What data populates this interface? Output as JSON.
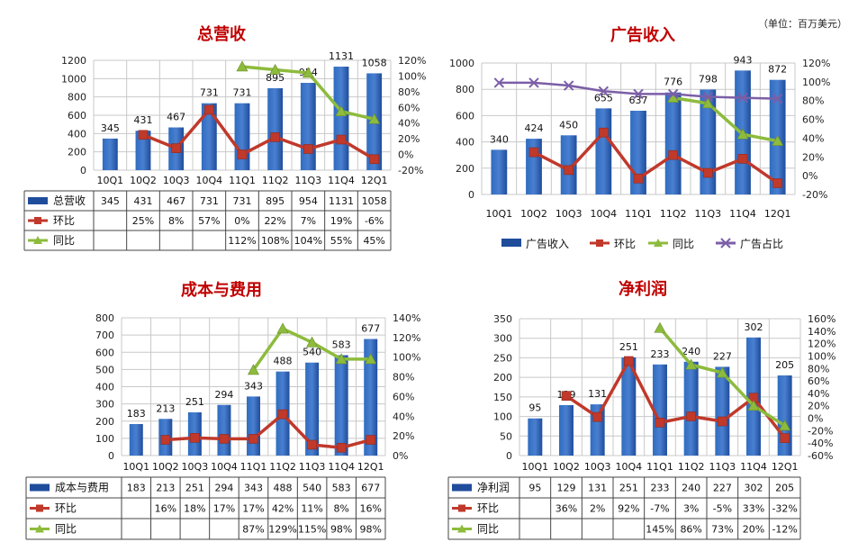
{
  "unit_label": "（单位：百万美元）",
  "colors": {
    "bar_top": "#4a7fd0",
    "bar_mid": "#1f4d9c",
    "bar_bottom": "#2f6cc0",
    "qoq": "#c0392b",
    "yoy": "#8dbb3c",
    "share": "#7b5ea7",
    "title": "#c00000",
    "grid": "#c8c8c8"
  },
  "chart_data": [
    {
      "type": "bar+line",
      "title": "总营收",
      "categories": [
        "10Q1",
        "10Q2",
        "10Q3",
        "10Q4",
        "11Q1",
        "11Q2",
        "11Q3",
        "11Q4",
        "12Q1"
      ],
      "bar_series": {
        "name": "总营收",
        "values": [
          345,
          431,
          467,
          731,
          731,
          895,
          954,
          1131,
          1058
        ]
      },
      "line_series": [
        {
          "name": "环比",
          "values": [
            null,
            25,
            8,
            57,
            0,
            22,
            7,
            19,
            -6
          ],
          "marker": "square",
          "color": "#c0392b"
        },
        {
          "name": "同比",
          "values": [
            null,
            null,
            null,
            null,
            112,
            108,
            104,
            55,
            45
          ],
          "marker": "triangle",
          "color": "#8dbb3c"
        }
      ],
      "y_left": {
        "min": 0,
        "max": 1200,
        "step": 200
      },
      "y_right": {
        "min": -20,
        "max": 120,
        "step": 20
      },
      "table_rows": [
        {
          "label": "总营收",
          "cells": [
            "345",
            "431",
            "467",
            "731",
            "731",
            "895",
            "954",
            "1131",
            "1058"
          ]
        },
        {
          "label": "环比",
          "cells": [
            "",
            "25%",
            "8%",
            "57%",
            "0%",
            "22%",
            "7%",
            "19%",
            "-6%"
          ]
        },
        {
          "label": "同比",
          "cells": [
            "",
            "",
            "",
            "",
            "112%",
            "108%",
            "104%",
            "55%",
            "45%"
          ]
        }
      ]
    },
    {
      "type": "bar+line",
      "title": "广告收入",
      "categories": [
        "10Q1",
        "10Q2",
        "10Q3",
        "10Q4",
        "11Q1",
        "11Q2",
        "11Q3",
        "11Q4",
        "12Q1"
      ],
      "bar_series": {
        "name": "广告收入",
        "values": [
          340,
          424,
          450,
          655,
          637,
          776,
          798,
          943,
          872
        ]
      },
      "line_series": [
        {
          "name": "环比",
          "values": [
            null,
            25,
            6,
            46,
            -3,
            22,
            3,
            18,
            -8
          ],
          "marker": "square",
          "color": "#c0392b"
        },
        {
          "name": "同比",
          "values": [
            null,
            null,
            null,
            null,
            null,
            83,
            77,
            44,
            37
          ],
          "marker": "triangle",
          "color": "#8dbb3c"
        },
        {
          "name": "广告占比",
          "values": [
            99,
            99,
            96,
            90,
            87,
            87,
            84,
            83,
            82
          ],
          "marker": "x",
          "color": "#7b5ea7"
        }
      ],
      "y_left": {
        "min": 0,
        "max": 1000,
        "step": 200
      },
      "y_right": {
        "min": -20,
        "max": 120,
        "step": 20
      },
      "legend": [
        "广告收入",
        "环比",
        "同比",
        "广告占比"
      ]
    },
    {
      "type": "bar+line",
      "title": "成本与费用",
      "categories": [
        "10Q1",
        "10Q2",
        "10Q3",
        "10Q4",
        "11Q1",
        "11Q2",
        "11Q3",
        "11Q4",
        "12Q1"
      ],
      "bar_series": {
        "name": "成本与费用",
        "values": [
          183,
          213,
          251,
          294,
          343,
          488,
          540,
          583,
          677
        ]
      },
      "line_series": [
        {
          "name": "环比",
          "values": [
            null,
            16,
            18,
            17,
            17,
            42,
            11,
            8,
            16
          ],
          "marker": "square",
          "color": "#c0392b"
        },
        {
          "name": "同比",
          "values": [
            null,
            null,
            null,
            null,
            87,
            129,
            115,
            98,
            98
          ],
          "marker": "triangle",
          "color": "#8dbb3c"
        }
      ],
      "y_left": {
        "min": 0,
        "max": 800,
        "step": 100
      },
      "y_right": {
        "min": 0,
        "max": 140,
        "step": 20
      },
      "table_rows": [
        {
          "label": "成本与费用",
          "cells": [
            "183",
            "213",
            "251",
            "294",
            "343",
            "488",
            "540",
            "583",
            "677"
          ]
        },
        {
          "label": "环比",
          "cells": [
            "",
            "16%",
            "18%",
            "17%",
            "17%",
            "42%",
            "11%",
            "8%",
            "16%"
          ]
        },
        {
          "label": "同比",
          "cells": [
            "",
            "",
            "",
            "",
            "87%",
            "129%",
            "115%",
            "98%",
            "98%"
          ]
        }
      ]
    },
    {
      "type": "bar+line",
      "title": "净利润",
      "categories": [
        "10Q1",
        "10Q2",
        "10Q3",
        "10Q4",
        "11Q1",
        "11Q2",
        "11Q3",
        "11Q4",
        "12Q1"
      ],
      "bar_series": {
        "name": "净利润",
        "values": [
          95,
          129,
          131,
          251,
          233,
          240,
          227,
          302,
          205
        ]
      },
      "line_series": [
        {
          "name": "环比",
          "values": [
            null,
            36,
            2,
            92,
            -7,
            3,
            -5,
            33,
            -32
          ],
          "marker": "square",
          "color": "#c0392b"
        },
        {
          "name": "同比",
          "values": [
            null,
            null,
            null,
            null,
            145,
            86,
            73,
            20,
            -12
          ],
          "marker": "triangle",
          "color": "#8dbb3c"
        }
      ],
      "y_left": {
        "min": 0,
        "max": 350,
        "step": 50
      },
      "y_right": {
        "min": -60,
        "max": 160,
        "step": 20
      },
      "table_rows": [
        {
          "label": "净利润",
          "cells": [
            "95",
            "129",
            "131",
            "251",
            "233",
            "240",
            "227",
            "302",
            "205"
          ]
        },
        {
          "label": "环比",
          "cells": [
            "",
            "36%",
            "2%",
            "92%",
            "-7%",
            "3%",
            "-5%",
            "33%",
            "-32%"
          ]
        },
        {
          "label": "同比",
          "cells": [
            "",
            "",
            "",
            "",
            "145%",
            "86%",
            "73%",
            "20%",
            "-12%"
          ]
        }
      ]
    }
  ]
}
